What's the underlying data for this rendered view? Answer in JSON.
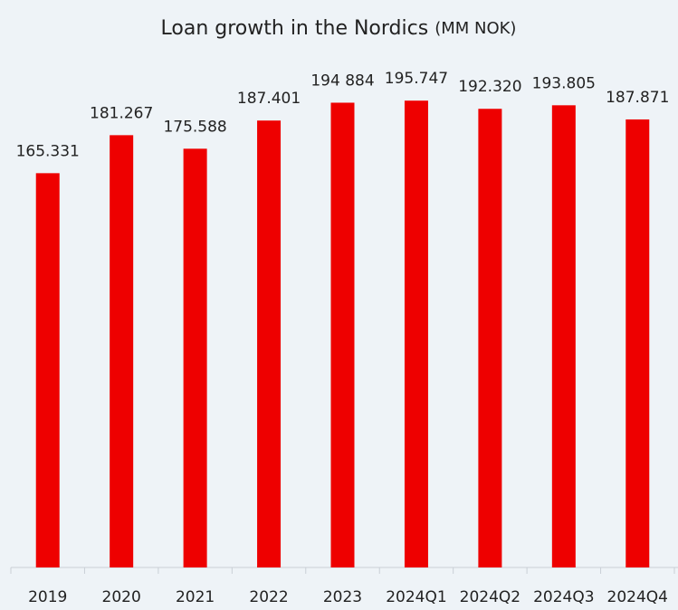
{
  "chart_data": {
    "type": "bar",
    "title": "Loan growth in the Nordics",
    "subtitle": "(MM NOK)",
    "categories": [
      "2019",
      "2020",
      "2021",
      "2022",
      "2023",
      "2024Q1",
      "2024Q2",
      "2024Q3",
      "2024Q4"
    ],
    "values": [
      165331,
      181267,
      175588,
      187401,
      194884,
      195747,
      192320,
      193805,
      187871
    ],
    "value_labels": [
      "165.331",
      "181.267",
      "175.588",
      "187.401",
      "194 884",
      "195.747",
      "192.320",
      "193.805",
      "187.871"
    ],
    "color": "#ee0000",
    "ylim": [
      0,
      200000
    ]
  }
}
